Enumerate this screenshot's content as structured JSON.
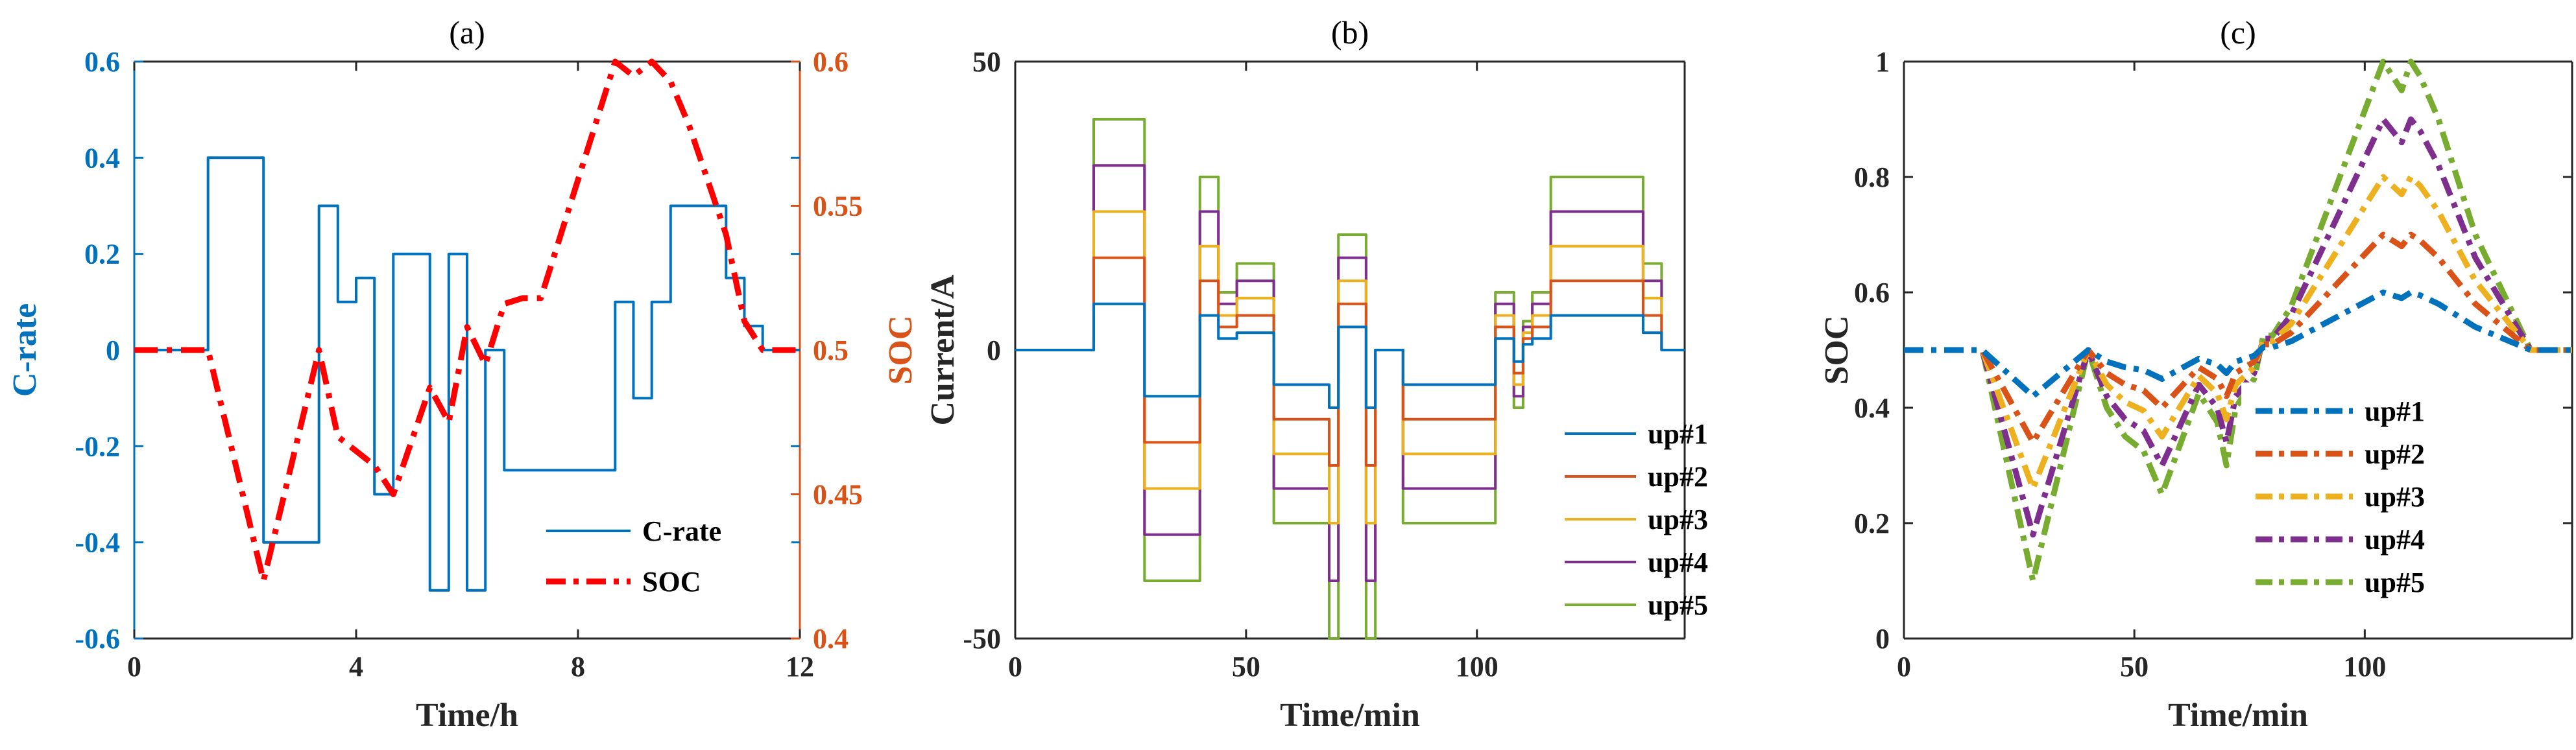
{
  "colors": {
    "axis": "#262626",
    "crate": "#0072BD",
    "soc_red": "#FF0000",
    "soc_axis": "#D95319",
    "up1": "#0072BD",
    "up2": "#D95319",
    "up3": "#EDB120",
    "up4": "#7E2F8E",
    "up5": "#77AC30"
  },
  "chart_data": [
    {
      "type": "line",
      "title": "(a)",
      "xlabel": "Time/h",
      "ylabel": "C-rate",
      "ylabel_right": "SOC",
      "xlim": [
        0,
        12
      ],
      "ylim": [
        -0.6,
        0.6
      ],
      "ylim_right": [
        0.4,
        0.6
      ],
      "xticks": [
        0,
        4,
        8,
        12
      ],
      "xtick_labels": [
        "0",
        "4",
        "8",
        "12"
      ],
      "yticks": [
        -0.6,
        -0.4,
        -0.2,
        0,
        0.2,
        0.4,
        0.6
      ],
      "ytick_labels": [
        "-0.6",
        "-0.4",
        "-0.2",
        "0",
        "0.2",
        "0.4",
        "0.6"
      ],
      "yticks_right": [
        0.4,
        0.45,
        0.5,
        0.55,
        0.6
      ],
      "ytick_labels_right": [
        "0.4",
        "0.45",
        "0.5",
        "0.55",
        "0.6"
      ],
      "legend": {
        "position": "bottom-right",
        "entries": [
          "C-rate",
          "SOC"
        ]
      },
      "series": [
        {
          "name": "C-rate",
          "axis": "left",
          "style": "solid",
          "color_key": "crate",
          "x": [
            0,
            1.33,
            1.33,
            2.33,
            2.33,
            3.33,
            3.33,
            3.67,
            3.67,
            4.0,
            4.0,
            4.33,
            4.33,
            4.67,
            4.67,
            5.33,
            5.33,
            5.67,
            5.67,
            6.0,
            6.0,
            6.33,
            6.33,
            6.67,
            6.67,
            7.0,
            7.0,
            7.33,
            7.33,
            8.67,
            8.67,
            9.0,
            9.0,
            9.33,
            9.33,
            9.67,
            9.67,
            10.0,
            10.0,
            10.67,
            10.67,
            11.0,
            11.0,
            11.33,
            11.33,
            12.0
          ],
          "y": [
            0,
            0,
            0.4,
            0.4,
            -0.4,
            -0.4,
            0.3,
            0.3,
            0.1,
            0.1,
            0.15,
            0.15,
            -0.3,
            -0.3,
            0.2,
            0.2,
            -0.5,
            -0.5,
            0.2,
            0.2,
            -0.5,
            -0.5,
            0,
            0,
            -0.25,
            -0.25,
            -0.25,
            -0.25,
            -0.25,
            -0.25,
            0.1,
            0.1,
            -0.1,
            -0.1,
            0.1,
            0.1,
            0.3,
            0.3,
            0.3,
            0.3,
            0.15,
            0.15,
            0.05,
            0.05,
            0,
            0
          ]
        },
        {
          "name": "SOC",
          "axis": "right",
          "style": "dashdot",
          "color_key": "soc_red",
          "x": [
            0,
            1.33,
            2.33,
            3.33,
            3.67,
            4.0,
            4.33,
            4.67,
            5.33,
            5.67,
            6.0,
            6.33,
            6.67,
            7.0,
            7.33,
            8.67,
            9.0,
            9.33,
            9.67,
            10.0,
            10.67,
            11.0,
            11.33,
            12.0
          ],
          "y": [
            0.5,
            0.5,
            0.42,
            0.5,
            0.47,
            0.465,
            0.46,
            0.45,
            0.487,
            0.475,
            0.508,
            0.495,
            0.516,
            0.518,
            0.518,
            0.6,
            0.595,
            0.6,
            0.593,
            0.578,
            0.54,
            0.51,
            0.5,
            0.5
          ]
        }
      ]
    },
    {
      "type": "line",
      "title": "(b)",
      "xlabel": "Time/min",
      "ylabel": "Current/A",
      "xlim": [
        0,
        145
      ],
      "ylim": [
        -50,
        50
      ],
      "xticks": [
        0,
        50,
        100
      ],
      "xtick_labels": [
        "0",
        "50",
        "100"
      ],
      "yticks": [
        -50,
        0,
        50
      ],
      "ytick_labels": [
        "-50",
        "0",
        "50"
      ],
      "legend": {
        "position": "bottom-right",
        "entries": [
          "up#1",
          "up#2",
          "up#3",
          "up#4",
          "up#5"
        ]
      },
      "time_breaks": [
        0,
        17,
        28,
        40,
        44,
        48,
        52,
        56,
        64,
        68,
        70,
        72,
        76,
        78,
        80,
        84,
        104,
        108,
        110,
        112,
        116,
        124,
        136,
        140,
        145
      ],
      "scale_factors": [
        1,
        2,
        3,
        4,
        5
      ],
      "base_profile": [
        0,
        8,
        -8,
        6,
        2,
        3,
        3,
        -6,
        -6,
        -10,
        4,
        4,
        -10,
        0,
        0,
        -6,
        2,
        -2,
        1,
        2,
        6,
        6,
        3,
        0
      ],
      "series": [
        {
          "name": "up#1",
          "color_key": "up1",
          "scale": 1
        },
        {
          "name": "up#2",
          "color_key": "up2",
          "scale": 2
        },
        {
          "name": "up#3",
          "color_key": "up3",
          "scale": 3
        },
        {
          "name": "up#4",
          "color_key": "up4",
          "scale": 4
        },
        {
          "name": "up#5",
          "color_key": "up5",
          "scale": 5
        }
      ]
    },
    {
      "type": "line",
      "title": "(c)",
      "xlabel": "Time/min",
      "ylabel": "SOC",
      "xlim": [
        0,
        145
      ],
      "ylim": [
        0,
        1
      ],
      "xticks": [
        0,
        50,
        100
      ],
      "xtick_labels": [
        "0",
        "50",
        "100"
      ],
      "yticks": [
        0,
        0.2,
        0.4,
        0.6,
        0.8,
        1
      ],
      "ytick_labels": [
        "0",
        "0.2",
        "0.4",
        "0.6",
        "0.8",
        "1"
      ],
      "legend": {
        "position": "bottom-right",
        "entries": [
          "up#1",
          "up#2",
          "up#3",
          "up#4",
          "up#5"
        ]
      },
      "x": [
        0,
        17,
        28,
        40,
        44,
        48,
        52,
        56,
        64,
        68,
        70,
        72,
        76,
        78,
        80,
        84,
        104,
        108,
        110,
        112,
        116,
        124,
        136,
        140,
        145
      ],
      "series": [
        {
          "name": "up#1",
          "color_key": "up1",
          "y": [
            0.5,
            0.5,
            0.42,
            0.5,
            0.48,
            0.47,
            0.465,
            0.45,
            0.485,
            0.475,
            0.46,
            0.48,
            0.49,
            0.505,
            0.505,
            0.515,
            0.6,
            0.59,
            0.6,
            0.595,
            0.58,
            0.54,
            0.5,
            0.5,
            0.5
          ]
        },
        {
          "name": "up#2",
          "color_key": "up2",
          "y": [
            0.5,
            0.5,
            0.34,
            0.5,
            0.46,
            0.44,
            0.43,
            0.4,
            0.47,
            0.45,
            0.42,
            0.46,
            0.48,
            0.51,
            0.51,
            0.53,
            0.7,
            0.68,
            0.7,
            0.69,
            0.66,
            0.58,
            0.5,
            0.5,
            0.5
          ]
        },
        {
          "name": "up#3",
          "color_key": "up3",
          "y": [
            0.5,
            0.5,
            0.26,
            0.5,
            0.44,
            0.41,
            0.395,
            0.35,
            0.455,
            0.425,
            0.38,
            0.44,
            0.47,
            0.515,
            0.515,
            0.545,
            0.8,
            0.77,
            0.8,
            0.785,
            0.74,
            0.62,
            0.5,
            0.5,
            0.5
          ]
        },
        {
          "name": "up#4",
          "color_key": "up4",
          "y": [
            0.5,
            0.5,
            0.18,
            0.5,
            0.42,
            0.38,
            0.36,
            0.3,
            0.44,
            0.4,
            0.34,
            0.42,
            0.46,
            0.52,
            0.52,
            0.56,
            0.9,
            0.86,
            0.9,
            0.88,
            0.82,
            0.66,
            0.5,
            0.5,
            0.5
          ]
        },
        {
          "name": "up#5",
          "color_key": "up5",
          "y": [
            0.5,
            0.5,
            0.1,
            0.5,
            0.4,
            0.35,
            0.325,
            0.25,
            0.425,
            0.375,
            0.3,
            0.4,
            0.45,
            0.525,
            0.525,
            0.575,
            1.0,
            0.95,
            1.0,
            0.975,
            0.9,
            0.7,
            0.5,
            0.5,
            0.5
          ]
        }
      ]
    }
  ]
}
